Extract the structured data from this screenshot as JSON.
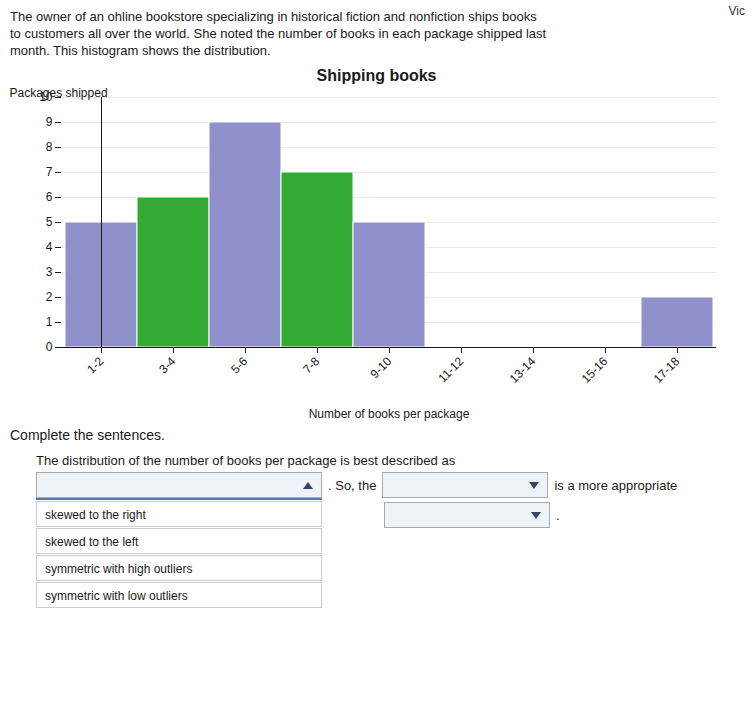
{
  "chart_data": {
    "type": "bar",
    "title": "Shipping books",
    "xlabel": "Number of books per package",
    "ylabel": "Packages shipped",
    "categories": [
      "1-2",
      "3-4",
      "5-6",
      "7-8",
      "9-10",
      "11-12",
      "13-14",
      "15-16",
      "17-18"
    ],
    "values": [
      5,
      6,
      9,
      7,
      5,
      0,
      0,
      0,
      2
    ],
    "colors": [
      "#9090cc",
      "#33aa33",
      "#9090cc",
      "#33aa33",
      "#9090cc",
      "#9090cc",
      "#9090cc",
      "#9090cc",
      "#9090cc"
    ],
    "ylim": [
      0,
      10
    ],
    "yticks": [
      0,
      1,
      2,
      3,
      4,
      5,
      6,
      7,
      8,
      9,
      10
    ],
    "grid": true,
    "annotations": [
      "Vic",
      "The owner of an ohline bookstore specializing in historical fiction and nonfiction ships books",
      "to customers all over the world. She noted the number of books in each package shipped last",
      "month. This histogram shows the distribution.",
      "Complete the sentences.",
      "The distribution of the number of books per package is best described as",
      ". So, the",
      "is a more appropriate",
      "skewed to the right",
      "skewed to the left",
      "symmetric with high outliers",
      "symmetric with low outliers",
      "."
    ]
  }
}
